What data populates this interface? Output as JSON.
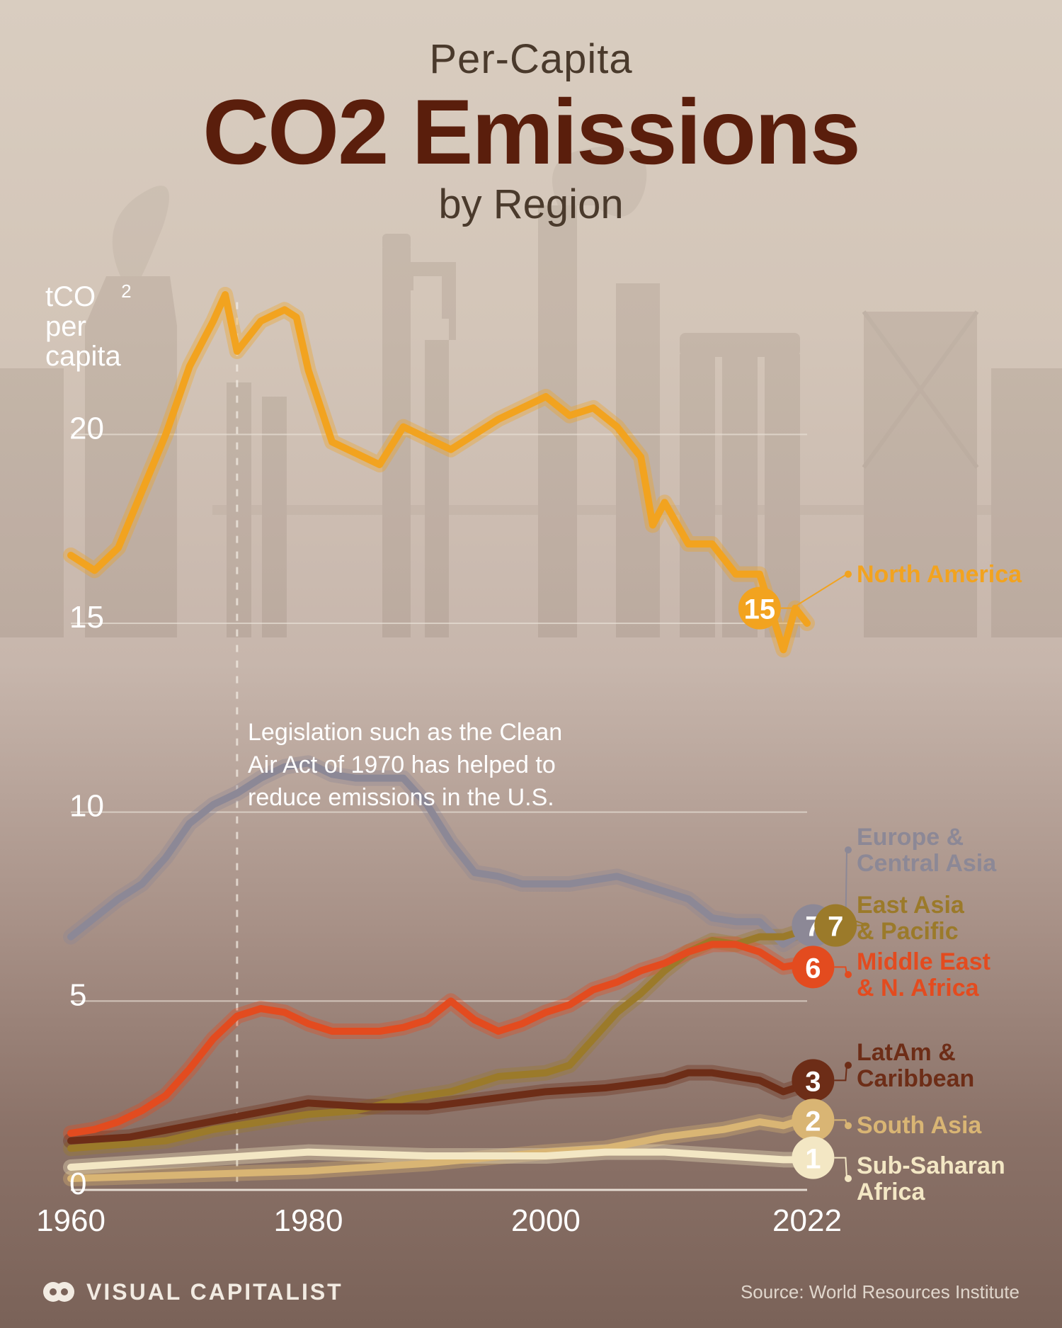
{
  "title": {
    "line1": "Per-Capita",
    "line2": "CO2 Emissions",
    "line3": "by Region",
    "line1_fontsize": 58,
    "line2_fontsize": 130,
    "line3_fontsize": 58,
    "small_color": "#4a3a2c",
    "big_color": "#5a1e0c"
  },
  "background": {
    "gradient_top": "#d9cdc0",
    "gradient_bottom": "#7a6258",
    "factory_silhouette_color": "#6b5a4a",
    "factory_opacity": 0.13
  },
  "chart": {
    "type": "line",
    "x_domain": [
      1960,
      2022
    ],
    "y_domain": [
      0,
      24
    ],
    "x_ticks": [
      1960,
      1980,
      2000,
      2022
    ],
    "y_ticks": [
      0,
      5,
      10,
      15,
      20
    ],
    "grid_color": "#e8e0d6",
    "axis_text_color": "#ffffff",
    "axis_fontsize": 44,
    "y_label_line1": "tCO",
    "y_label_sub": "2",
    "y_label_line2": "per",
    "y_label_line3": "capita",
    "line_width": 10,
    "glow_width": 22,
    "annotation": {
      "text": "Legislation such as the Clean Air Act of 1970 has helped to reduce emissions in the U.S.",
      "ref_year": 1974,
      "fontsize": 34,
      "color": "#ffffff"
    }
  },
  "series": [
    {
      "name": "North America",
      "color": "#f2a31f",
      "end_value": 15,
      "end_badge_text": "15",
      "label_lines": [
        "North America"
      ],
      "data": [
        [
          1960,
          16.8
        ],
        [
          1962,
          16.4
        ],
        [
          1964,
          17.0
        ],
        [
          1966,
          18.5
        ],
        [
          1968,
          20.0
        ],
        [
          1970,
          21.8
        ],
        [
          1972,
          23.0
        ],
        [
          1973,
          23.7
        ],
        [
          1974,
          22.2
        ],
        [
          1976,
          23.0
        ],
        [
          1978,
          23.3
        ],
        [
          1979,
          23.1
        ],
        [
          1980,
          21.7
        ],
        [
          1982,
          19.8
        ],
        [
          1984,
          19.5
        ],
        [
          1986,
          19.2
        ],
        [
          1988,
          20.2
        ],
        [
          1990,
          19.9
        ],
        [
          1992,
          19.6
        ],
        [
          1994,
          20.0
        ],
        [
          1996,
          20.4
        ],
        [
          1998,
          20.7
        ],
        [
          2000,
          21.0
        ],
        [
          2002,
          20.5
        ],
        [
          2004,
          20.7
        ],
        [
          2006,
          20.2
        ],
        [
          2008,
          19.4
        ],
        [
          2009,
          17.6
        ],
        [
          2010,
          18.2
        ],
        [
          2012,
          17.1
        ],
        [
          2014,
          17.1
        ],
        [
          2016,
          16.3
        ],
        [
          2018,
          16.3
        ],
        [
          2020,
          14.3
        ],
        [
          2021,
          15.4
        ],
        [
          2022,
          15.0
        ]
      ]
    },
    {
      "name": "Europe & Central Asia",
      "color": "#8c8896",
      "end_value": 7,
      "end_badge_text": "7",
      "label_lines": [
        "Europe &",
        "Central Asia"
      ],
      "data": [
        [
          1960,
          6.7
        ],
        [
          1962,
          7.2
        ],
        [
          1964,
          7.7
        ],
        [
          1966,
          8.1
        ],
        [
          1968,
          8.8
        ],
        [
          1970,
          9.7
        ],
        [
          1972,
          10.2
        ],
        [
          1974,
          10.5
        ],
        [
          1976,
          10.9
        ],
        [
          1978,
          11.2
        ],
        [
          1980,
          11.3
        ],
        [
          1982,
          11.0
        ],
        [
          1984,
          10.9
        ],
        [
          1986,
          10.9
        ],
        [
          1988,
          10.9
        ],
        [
          1990,
          10.2
        ],
        [
          1992,
          9.2
        ],
        [
          1994,
          8.4
        ],
        [
          1996,
          8.3
        ],
        [
          1998,
          8.1
        ],
        [
          2000,
          8.1
        ],
        [
          2002,
          8.1
        ],
        [
          2004,
          8.2
        ],
        [
          2006,
          8.3
        ],
        [
          2008,
          8.1
        ],
        [
          2010,
          7.9
        ],
        [
          2012,
          7.7
        ],
        [
          2014,
          7.2
        ],
        [
          2016,
          7.1
        ],
        [
          2018,
          7.1
        ],
        [
          2020,
          6.5
        ],
        [
          2022,
          6.9
        ]
      ]
    },
    {
      "name": "East Asia & Pacific",
      "color": "#9b7a2a",
      "end_value": 7,
      "end_badge_text": "7",
      "label_lines": [
        "East Asia",
        "& Pacific"
      ],
      "data": [
        [
          1960,
          1.1
        ],
        [
          1964,
          1.2
        ],
        [
          1968,
          1.3
        ],
        [
          1972,
          1.6
        ],
        [
          1976,
          1.8
        ],
        [
          1980,
          2.0
        ],
        [
          1984,
          2.1
        ],
        [
          1988,
          2.4
        ],
        [
          1992,
          2.6
        ],
        [
          1996,
          3.0
        ],
        [
          2000,
          3.1
        ],
        [
          2002,
          3.3
        ],
        [
          2004,
          4.0
        ],
        [
          2006,
          4.7
        ],
        [
          2008,
          5.2
        ],
        [
          2010,
          5.8
        ],
        [
          2012,
          6.3
        ],
        [
          2014,
          6.6
        ],
        [
          2016,
          6.5
        ],
        [
          2018,
          6.7
        ],
        [
          2020,
          6.7
        ],
        [
          2022,
          6.9
        ]
      ]
    },
    {
      "name": "Middle East & N. Africa",
      "color": "#e34b1f",
      "end_value": 6,
      "end_badge_text": "6",
      "label_lines": [
        "Middle East",
        "& N. Africa"
      ],
      "data": [
        [
          1960,
          1.5
        ],
        [
          1962,
          1.6
        ],
        [
          1964,
          1.8
        ],
        [
          1966,
          2.1
        ],
        [
          1968,
          2.5
        ],
        [
          1970,
          3.2
        ],
        [
          1972,
          4.0
        ],
        [
          1974,
          4.6
        ],
        [
          1976,
          4.8
        ],
        [
          1978,
          4.7
        ],
        [
          1980,
          4.4
        ],
        [
          1982,
          4.2
        ],
        [
          1984,
          4.2
        ],
        [
          1986,
          4.2
        ],
        [
          1988,
          4.3
        ],
        [
          1990,
          4.5
        ],
        [
          1992,
          5.0
        ],
        [
          1994,
          4.5
        ],
        [
          1996,
          4.2
        ],
        [
          1998,
          4.4
        ],
        [
          2000,
          4.7
        ],
        [
          2002,
          4.9
        ],
        [
          2004,
          5.3
        ],
        [
          2006,
          5.5
        ],
        [
          2008,
          5.8
        ],
        [
          2010,
          6.0
        ],
        [
          2012,
          6.3
        ],
        [
          2014,
          6.5
        ],
        [
          2016,
          6.5
        ],
        [
          2018,
          6.3
        ],
        [
          2020,
          5.9
        ],
        [
          2022,
          6.0
        ]
      ]
    },
    {
      "name": "LatAm & Caribbean",
      "color": "#6d2d17",
      "end_value": 3,
      "end_badge_text": "3",
      "label_lines": [
        "LatAm &",
        "Caribbean"
      ],
      "data": [
        [
          1960,
          1.3
        ],
        [
          1965,
          1.4
        ],
        [
          1970,
          1.7
        ],
        [
          1975,
          2.0
        ],
        [
          1980,
          2.3
        ],
        [
          1985,
          2.2
        ],
        [
          1990,
          2.2
        ],
        [
          1995,
          2.4
        ],
        [
          2000,
          2.6
        ],
        [
          2005,
          2.7
        ],
        [
          2010,
          2.9
        ],
        [
          2012,
          3.1
        ],
        [
          2014,
          3.1
        ],
        [
          2016,
          3.0
        ],
        [
          2018,
          2.9
        ],
        [
          2020,
          2.6
        ],
        [
          2022,
          2.8
        ]
      ]
    },
    {
      "name": "South Asia",
      "color": "#d9b574",
      "end_value": 2,
      "end_badge_text": "2",
      "label_lines": [
        "South Asia"
      ],
      "data": [
        [
          1960,
          0.3
        ],
        [
          1970,
          0.4
        ],
        [
          1980,
          0.5
        ],
        [
          1990,
          0.7
        ],
        [
          2000,
          1.0
        ],
        [
          2005,
          1.1
        ],
        [
          2010,
          1.4
        ],
        [
          2015,
          1.6
        ],
        [
          2018,
          1.8
        ],
        [
          2020,
          1.7
        ],
        [
          2022,
          1.9
        ]
      ]
    },
    {
      "name": "Sub-Saharan Africa",
      "color": "#f3e7c4",
      "end_value": 1,
      "end_badge_text": "1",
      "label_lines": [
        "Sub-Saharan",
        "Africa"
      ],
      "data": [
        [
          1960,
          0.6
        ],
        [
          1970,
          0.8
        ],
        [
          1980,
          1.0
        ],
        [
          1990,
          0.9
        ],
        [
          2000,
          0.9
        ],
        [
          2005,
          1.0
        ],
        [
          2010,
          1.0
        ],
        [
          2015,
          0.9
        ],
        [
          2020,
          0.8
        ],
        [
          2022,
          0.8
        ]
      ]
    }
  ],
  "badge_layout": [
    {
      "series_index": 0,
      "cx_year": 2018,
      "cy_val": 15.4,
      "label_y_val": 16.3
    },
    {
      "series_index": 1,
      "cx_year": 2022.5,
      "cy_val": 7.0,
      "label_y_val": 9.0
    },
    {
      "series_index": 2,
      "cx_year": 2024.4,
      "cy_val": 7.0,
      "label_y_val": 7.2
    },
    {
      "series_index": 3,
      "cx_year": 2022.5,
      "cy_val": 5.9,
      "label_y_val": 5.7
    },
    {
      "series_index": 4,
      "cx_year": 2022.5,
      "cy_val": 2.9,
      "label_y_val": 3.3
    },
    {
      "series_index": 5,
      "cx_year": 2022.5,
      "cy_val": 1.85,
      "label_y_val": 1.7
    },
    {
      "series_index": 6,
      "cx_year": 2022.5,
      "cy_val": 0.85,
      "label_y_val": 0.3
    }
  ],
  "footer": {
    "brand": "VISUAL CAPITALIST",
    "source": "Source: World Resources Institute",
    "text_color": "#f2ebe2"
  }
}
